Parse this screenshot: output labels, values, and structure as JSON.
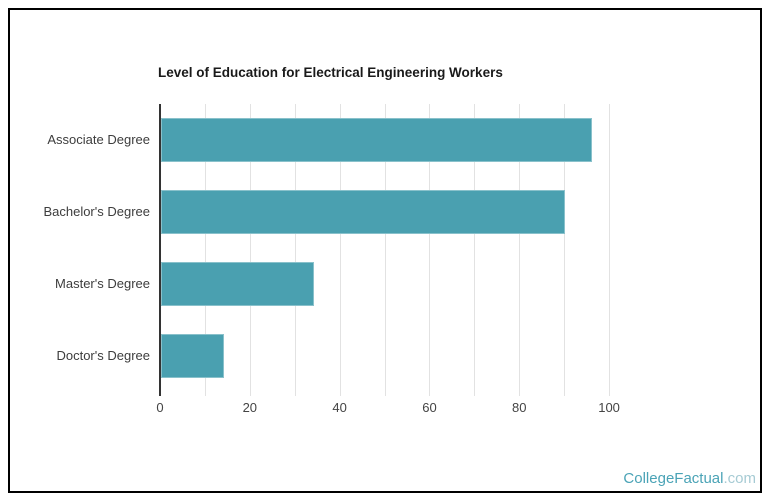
{
  "page": {
    "background": "#ffffff",
    "frame_border_color": "#000000"
  },
  "chart_data": {
    "type": "bar",
    "orientation": "horizontal",
    "title": "Level of Education for Electrical Engineering Workers",
    "categories": [
      "Associate Degree",
      "Bachelor's Degree",
      "Master's Degree",
      "Doctor's Degree"
    ],
    "values": [
      96,
      90,
      34,
      14
    ],
    "xlabel": "",
    "ylabel": "",
    "xlim": [
      0,
      110
    ],
    "x_major_ticks": [
      0,
      20,
      40,
      60,
      80,
      100
    ],
    "gridline_step": 10,
    "grid": true,
    "legend": "none",
    "bar_color": "#4AA0B0",
    "gridline_color": "#e2e2e2",
    "axis_line_color": "#333333",
    "category_label_color": "#3d3d3d",
    "tick_label_color": "#444444",
    "title_color": "#1a1a1a"
  },
  "watermark": {
    "name": "CollegeFactual",
    "domain": ".com",
    "name_color": "#4AA3B6",
    "domain_color": "#A6CBD4"
  }
}
